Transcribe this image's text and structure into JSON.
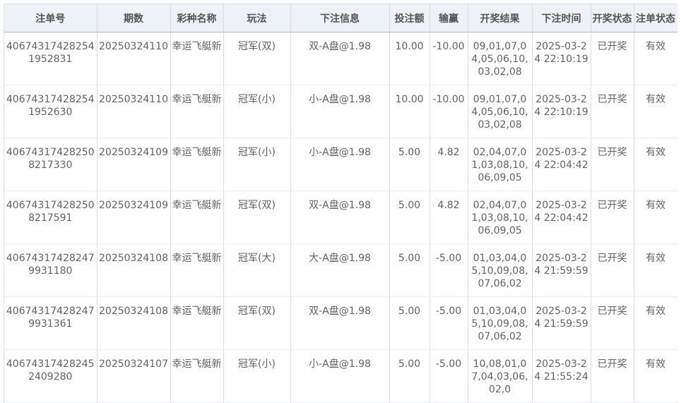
{
  "table": {
    "columns": [
      "注单号",
      "期数",
      "彩种名称",
      "玩法",
      "下注信息",
      "投注额",
      "输赢",
      "开奖结果",
      "下注时间",
      "开奖状态",
      "注单状态"
    ],
    "rows": [
      [
        "406743174282541952831",
        "20250324110",
        "幸运飞艇新",
        "冠军(双)",
        "双-A盘@1.98",
        "10.00",
        "-10.00",
        "09,01,07,04,05,06,10,03,02,08",
        "2025-03-24 22:10:19",
        "已开奖",
        "有效"
      ],
      [
        "406743174282541952630",
        "20250324110",
        "幸运飞艇新",
        "冠军(小)",
        "小-A盘@1.98",
        "10.00",
        "-10.00",
        "09,01,07,04,05,06,10,03,02,08",
        "2025-03-24 22:10:19",
        "已开奖",
        "有效"
      ],
      [
        "406743174282508217330",
        "20250324109",
        "幸运飞艇新",
        "冠军(小)",
        "小-A盘@1.98",
        "5.00",
        "4.82",
        "02,04,07,01,03,08,10,06,09,05",
        "2025-03-24 22:04:42",
        "已开奖",
        "有效"
      ],
      [
        "406743174282508217591",
        "20250324109",
        "幸运飞艇新",
        "冠军(双)",
        "双-A盘@1.98",
        "5.00",
        "4.82",
        "02,04,07,01,03,08,10,06,09,05",
        "2025-03-24 22:04:42",
        "已开奖",
        "有效"
      ],
      [
        "406743174282479931180",
        "20250324108",
        "幸运飞艇新",
        "冠军(大)",
        "大-A盘@1.98",
        "5.00",
        "-5.00",
        "01,03,04,05,10,09,08,07,06,02",
        "2025-03-24 21:59:59",
        "已开奖",
        "有效"
      ],
      [
        "406743174282479931361",
        "20250324108",
        "幸运飞艇新",
        "冠军(双)",
        "双-A盘@1.98",
        "5.00",
        "-5.00",
        "01,03,04,05,10,09,08,07,06,02",
        "2025-03-24 21:59:59",
        "已开奖",
        "有效"
      ],
      [
        "406743174282452409280",
        "20250324107",
        "幸运飞艇新",
        "冠军(小)",
        "小-A盘@1.98",
        "5.00",
        "-5.00",
        "10,08,01,07,04,03,06,02,0",
        "2025-03-24 21:55:24",
        "已开奖",
        "有效"
      ]
    ]
  }
}
